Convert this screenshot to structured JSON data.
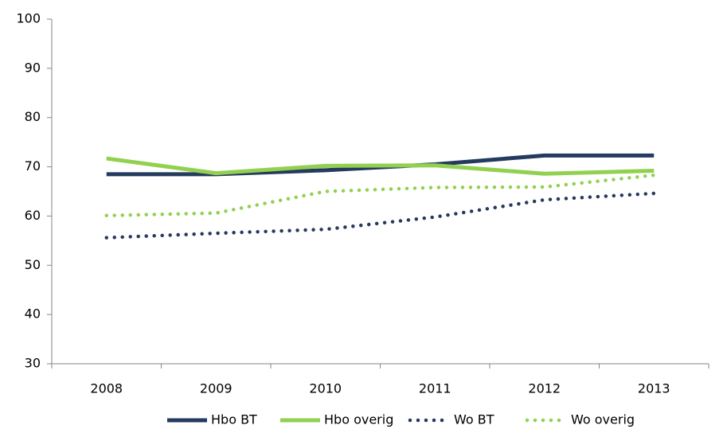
{
  "chart_data": {
    "type": "line",
    "categories": [
      "2008",
      "2009",
      "2010",
      "2011",
      "2012",
      "2013"
    ],
    "series": [
      {
        "name": "Hbo BT",
        "color": "#243a5e",
        "style": "solid",
        "values": [
          68.5,
          68.5,
          69.3,
          70.5,
          72.3,
          72.3
        ]
      },
      {
        "name": "Hbo overig",
        "color": "#92d050",
        "style": "solid",
        "values": [
          71.7,
          68.7,
          70.2,
          70.3,
          68.6,
          69.2
        ]
      },
      {
        "name": "Wo BT",
        "color": "#243a5e",
        "style": "dotted",
        "values": [
          55.6,
          56.5,
          57.3,
          59.8,
          63.3,
          64.6
        ]
      },
      {
        "name": "Wo overig",
        "color": "#92d050",
        "style": "dotted",
        "values": [
          60.1,
          60.6,
          65.0,
          65.8,
          65.9,
          68.3
        ]
      }
    ],
    "ylim": [
      30,
      100
    ],
    "yticks": [
      30,
      40,
      50,
      60,
      70,
      80,
      90,
      100
    ],
    "grid": false,
    "legend": "bottom"
  }
}
